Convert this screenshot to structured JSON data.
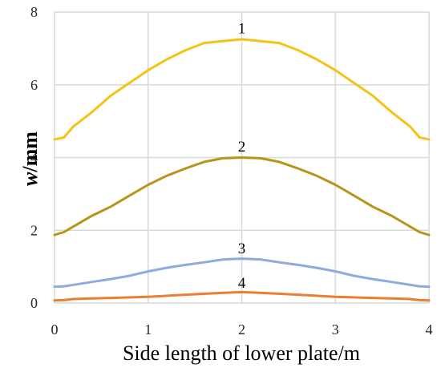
{
  "chart_data": {
    "type": "line",
    "xlabel": "Side length of lower plate/m",
    "ylabel_italic": "w",
    "ylabel_rest": "/mm",
    "xlim": [
      0,
      4
    ],
    "ylim": [
      0,
      8
    ],
    "xticks": [
      0,
      1,
      2,
      3,
      4
    ],
    "yticks": [
      0,
      2,
      4,
      6,
      8
    ],
    "grid": true,
    "legend": "none",
    "series": [
      {
        "name": "1",
        "color": "#f5c218",
        "points": [
          [
            0,
            4.5
          ],
          [
            0.1,
            4.55
          ],
          [
            0.2,
            4.85
          ],
          [
            0.4,
            5.25
          ],
          [
            0.6,
            5.7
          ],
          [
            0.8,
            6.05
          ],
          [
            1.0,
            6.4
          ],
          [
            1.2,
            6.7
          ],
          [
            1.4,
            6.95
          ],
          [
            1.6,
            7.15
          ],
          [
            1.8,
            7.2
          ],
          [
            2.0,
            7.25
          ],
          [
            2.2,
            7.2
          ],
          [
            2.4,
            7.15
          ],
          [
            2.6,
            6.95
          ],
          [
            2.8,
            6.7
          ],
          [
            3.0,
            6.4
          ],
          [
            3.2,
            6.05
          ],
          [
            3.4,
            5.7
          ],
          [
            3.6,
            5.25
          ],
          [
            3.8,
            4.85
          ],
          [
            3.9,
            4.55
          ],
          [
            4.0,
            4.5
          ]
        ]
      },
      {
        "name": "2",
        "color": "#b8941a",
        "points": [
          [
            0,
            1.87
          ],
          [
            0.1,
            1.95
          ],
          [
            0.2,
            2.1
          ],
          [
            0.4,
            2.4
          ],
          [
            0.6,
            2.65
          ],
          [
            0.8,
            2.95
          ],
          [
            1.0,
            3.25
          ],
          [
            1.2,
            3.5
          ],
          [
            1.4,
            3.7
          ],
          [
            1.6,
            3.88
          ],
          [
            1.8,
            3.98
          ],
          [
            2.0,
            4.0
          ],
          [
            2.2,
            3.98
          ],
          [
            2.4,
            3.88
          ],
          [
            2.6,
            3.7
          ],
          [
            2.8,
            3.5
          ],
          [
            3.0,
            3.25
          ],
          [
            3.2,
            2.95
          ],
          [
            3.4,
            2.65
          ],
          [
            3.6,
            2.4
          ],
          [
            3.8,
            2.1
          ],
          [
            3.9,
            1.95
          ],
          [
            4.0,
            1.87
          ]
        ]
      },
      {
        "name": "3",
        "color": "#8faadc",
        "points": [
          [
            0,
            0.45
          ],
          [
            0.1,
            0.46
          ],
          [
            0.2,
            0.5
          ],
          [
            0.4,
            0.58
          ],
          [
            0.6,
            0.66
          ],
          [
            0.8,
            0.75
          ],
          [
            1.0,
            0.87
          ],
          [
            1.2,
            0.97
          ],
          [
            1.4,
            1.05
          ],
          [
            1.6,
            1.12
          ],
          [
            1.8,
            1.2
          ],
          [
            2.0,
            1.22
          ],
          [
            2.2,
            1.2
          ],
          [
            2.4,
            1.12
          ],
          [
            2.6,
            1.05
          ],
          [
            2.8,
            0.97
          ],
          [
            3.0,
            0.87
          ],
          [
            3.2,
            0.75
          ],
          [
            3.4,
            0.66
          ],
          [
            3.6,
            0.58
          ],
          [
            3.8,
            0.5
          ],
          [
            3.9,
            0.46
          ],
          [
            4.0,
            0.45
          ]
        ]
      },
      {
        "name": "4",
        "color": "#ed7d31",
        "points": [
          [
            0,
            0.07
          ],
          [
            0.1,
            0.08
          ],
          [
            0.2,
            0.11
          ],
          [
            0.6,
            0.14
          ],
          [
            1.0,
            0.17
          ],
          [
            1.4,
            0.23
          ],
          [
            1.8,
            0.28
          ],
          [
            2.0,
            0.3
          ],
          [
            2.2,
            0.28
          ],
          [
            2.6,
            0.23
          ],
          [
            3.0,
            0.17
          ],
          [
            3.4,
            0.14
          ],
          [
            3.8,
            0.11
          ],
          [
            3.9,
            0.08
          ],
          [
            4.0,
            0.07
          ]
        ]
      }
    ],
    "curve_labels": [
      {
        "text": "1",
        "x": 2.0,
        "y": 7.55
      },
      {
        "text": "2",
        "x": 2.0,
        "y": 4.3
      },
      {
        "text": "3",
        "x": 2.0,
        "y": 1.5
      },
      {
        "text": "4",
        "x": 2.0,
        "y": 0.55
      }
    ]
  }
}
